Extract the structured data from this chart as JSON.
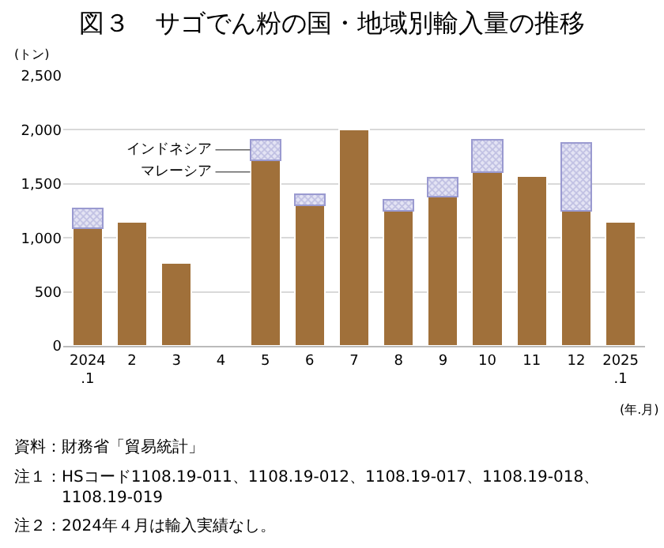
{
  "chart_data": {
    "type": "bar",
    "title": "図３　サゴでん粉の国・地域別輸入量の推移",
    "ylabel": "(トン)",
    "xlabel": "(年.月)",
    "categories": [
      "2024\n.1",
      "2",
      "3",
      "4",
      "5",
      "6",
      "7",
      "8",
      "9",
      "10",
      "11",
      "12",
      "2025\n.1"
    ],
    "stacked": true,
    "series": [
      {
        "name": "マレーシア",
        "color": "#a0703a",
        "values": [
          1090,
          1150,
          770,
          null,
          1720,
          1300,
          2000,
          1250,
          1380,
          1610,
          1570,
          1250,
          1150
        ]
      },
      {
        "name": "インドネシア",
        "color": "#9a9ad0",
        "values": [
          180,
          null,
          null,
          null,
          190,
          100,
          null,
          100,
          180,
          300,
          null,
          630,
          null
        ]
      }
    ],
    "ylim": [
      0,
      2500
    ],
    "yticks": [
      {
        "value": 0,
        "label": "0"
      },
      {
        "value": 500,
        "label": "500"
      },
      {
        "value": 1000,
        "label": "1,000"
      },
      {
        "value": 1500,
        "label": "1,500"
      },
      {
        "value": 2000,
        "label": "2,000"
      },
      {
        "value": 2500,
        "label": "2,500"
      }
    ],
    "grid": "y",
    "annotations": [
      "資料：財務省「貿易統計」",
      "注１：HSコード1108.19-011、1108.19-012、1108.19-017、1108.19-018、\n　　　1108.19-019",
      "注２：2024年４月は輸入実績なし。"
    ]
  }
}
